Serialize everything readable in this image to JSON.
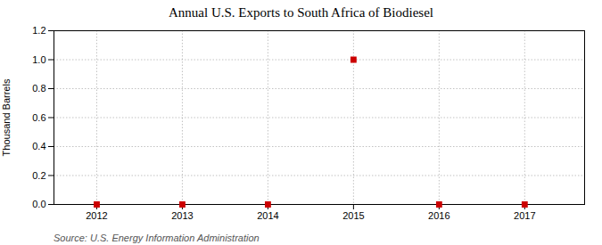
{
  "chart_data": {
    "type": "scatter",
    "title": "Annual U.S. Exports to South Africa of Biodiesel",
    "ylabel": "Thousand Barrels",
    "source": "Source: U.S. Energy Information Administration",
    "x": [
      2012,
      2013,
      2014,
      2015,
      2016,
      2017
    ],
    "values": [
      0.0,
      0.0,
      0.0,
      1.0,
      0.0,
      0.0
    ],
    "color": "#cc0000",
    "marker": "square",
    "xlim": [
      2011.5,
      2017.7
    ],
    "xticks": [
      2012,
      2013,
      2014,
      2015,
      2016,
      2017
    ],
    "ylim": [
      0.0,
      1.2
    ],
    "yticks": [
      {
        "value": 0.0,
        "label": "0.0"
      },
      0.2,
      0.4,
      0.6,
      0.8,
      {
        "value": 1.0,
        "label": "1.0"
      },
      1.2
    ],
    "grid": true
  }
}
